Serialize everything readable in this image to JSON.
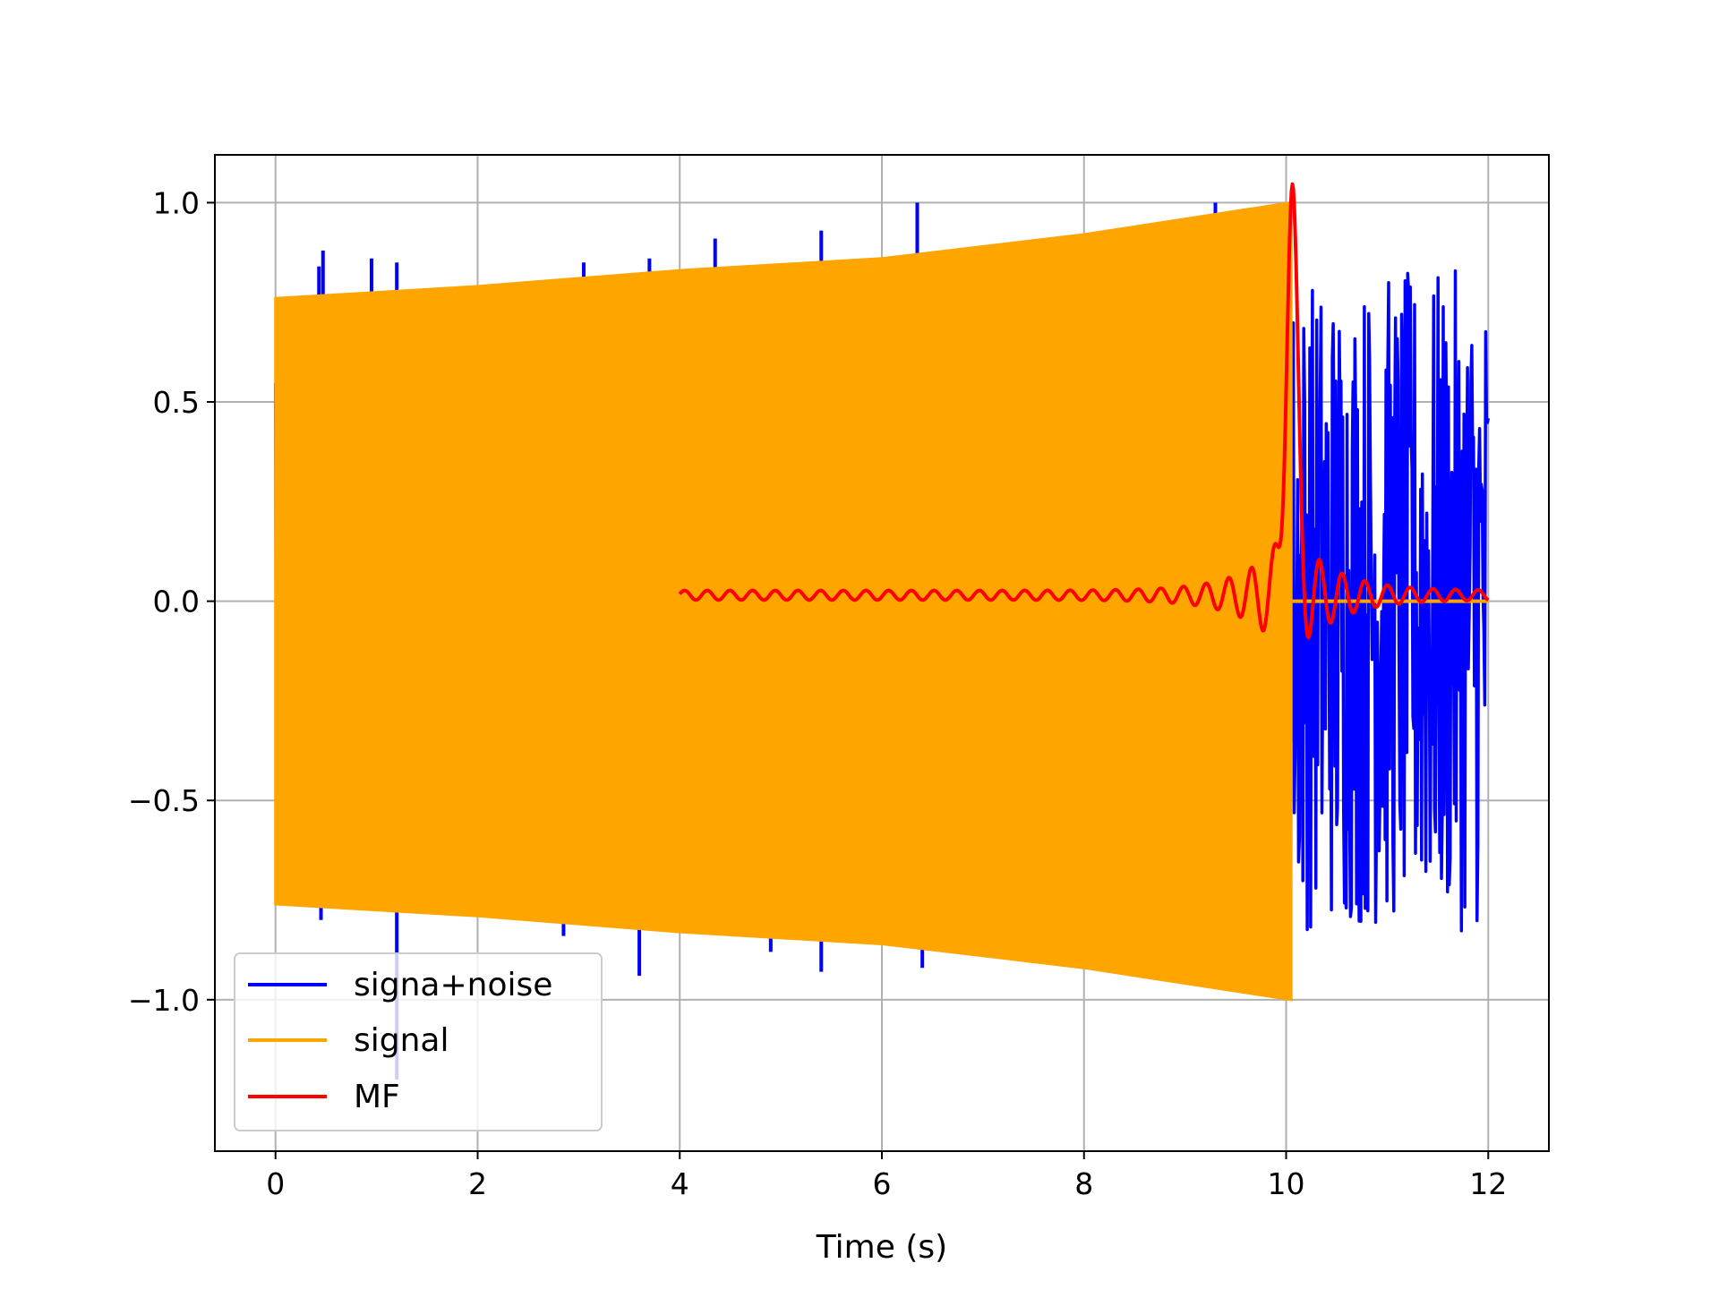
{
  "chart_data": {
    "type": "line",
    "title": "",
    "xlabel": "Time (s)",
    "ylabel": "",
    "xlim": [
      -0.6,
      12.6
    ],
    "ylim": [
      -1.38,
      1.12
    ],
    "xticks": [
      0,
      2,
      4,
      6,
      8,
      10,
      12
    ],
    "yticks": [
      -1.0,
      -0.5,
      0.0,
      0.5,
      1.0
    ],
    "grid": true,
    "legend": {
      "placement": "lower-left"
    },
    "series": [
      {
        "name": "signa+noise",
        "color": "#0000ff",
        "kind": "noisy-chirp",
        "x_range": [
          0,
          12
        ],
        "noise_amplitude": 0.35,
        "spike_points": [
          {
            "x": 0.43,
            "y": 0.84
          },
          {
            "x": 0.47,
            "y": 0.88
          },
          {
            "x": 0.95,
            "y": 0.86
          },
          {
            "x": 1.2,
            "y": 0.85
          },
          {
            "x": 3.05,
            "y": 0.85
          },
          {
            "x": 3.7,
            "y": 0.86
          },
          {
            "x": 4.35,
            "y": 0.91
          },
          {
            "x": 5.4,
            "y": 0.93
          },
          {
            "x": 6.35,
            "y": 1.0
          },
          {
            "x": 9.3,
            "y": 1.0
          },
          {
            "x": 1.2,
            "y": -1.2
          },
          {
            "x": 3.6,
            "y": -0.94
          },
          {
            "x": 4.9,
            "y": -0.88
          },
          {
            "x": 5.4,
            "y": -0.93
          },
          {
            "x": 6.4,
            "y": -0.92
          },
          {
            "x": 0.45,
            "y": -0.8
          },
          {
            "x": 2.85,
            "y": -0.84
          }
        ],
        "after_signal_noise": {
          "x_start": 10.05,
          "x_end": 12.0,
          "max_abs": 0.83
        }
      },
      {
        "name": "signal",
        "color": "#ffa500",
        "kind": "chirp-envelope",
        "envelope": {
          "x": [
            0,
            2,
            4,
            6,
            8,
            10.05
          ],
          "upper": [
            0.76,
            0.79,
            0.83,
            0.86,
            0.92,
            1.0
          ],
          "lower": [
            -0.76,
            -0.79,
            -0.83,
            -0.86,
            -0.92,
            -1.0
          ]
        },
        "zero_line": {
          "x_start": 10.05,
          "x_end": 12.0,
          "y": 0.0
        }
      },
      {
        "name": "MF",
        "color": "#ff0000",
        "kind": "matched-filter",
        "x_range": [
          4.0,
          12.0
        ],
        "peak": {
          "x": 10.05,
          "y": 1.0
        },
        "baseline": 0.015,
        "side_lobes": [
          {
            "x": 9.55,
            "y": 0.08
          },
          {
            "x": 9.7,
            "y": 0.12
          },
          {
            "x": 9.85,
            "y": 0.2
          },
          {
            "x": 10.3,
            "y": 0.16
          },
          {
            "x": 10.5,
            "y": 0.1
          }
        ]
      }
    ]
  }
}
